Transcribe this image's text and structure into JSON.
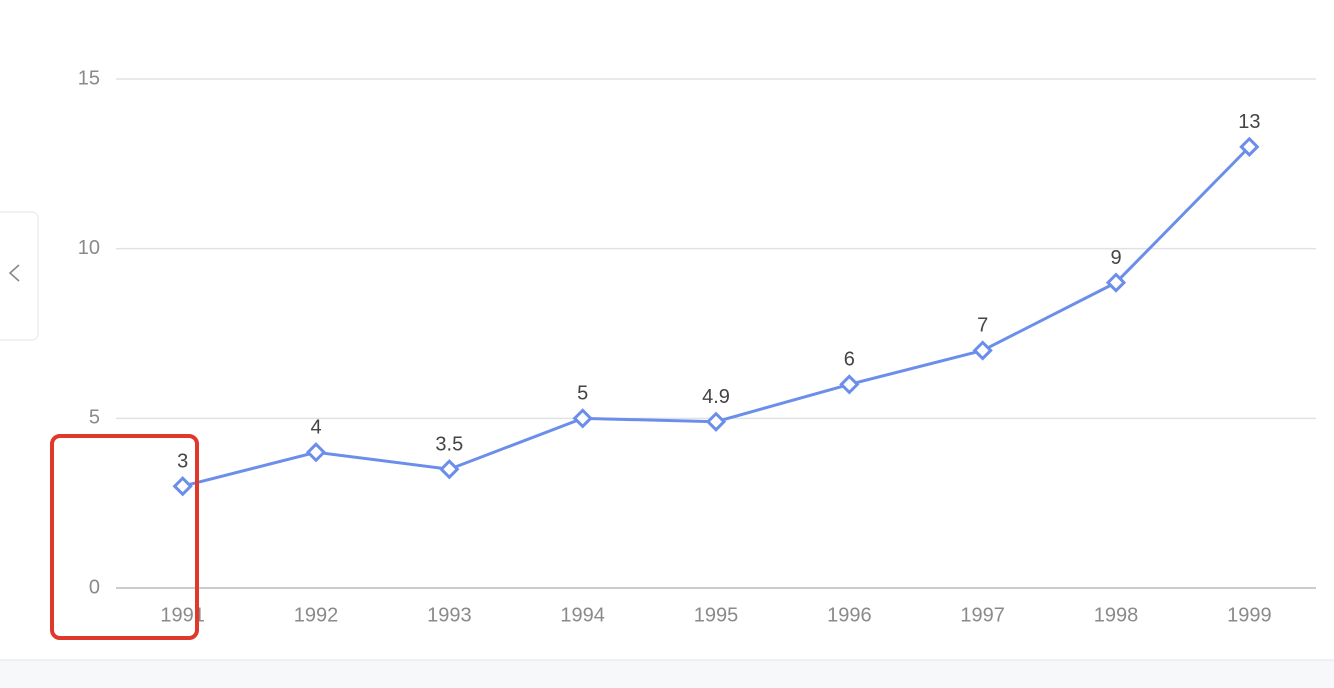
{
  "chart_data": {
    "type": "line",
    "categories": [
      "1991",
      "1992",
      "1993",
      "1994",
      "1995",
      "1996",
      "1997",
      "1998",
      "1999"
    ],
    "values": [
      3,
      4,
      3.5,
      5,
      4.9,
      6,
      7,
      9,
      13
    ],
    "color": "#6a8eea",
    "ylim": [
      0,
      15
    ],
    "yticks": [
      0,
      5,
      10,
      15
    ],
    "grid": true
  }
}
